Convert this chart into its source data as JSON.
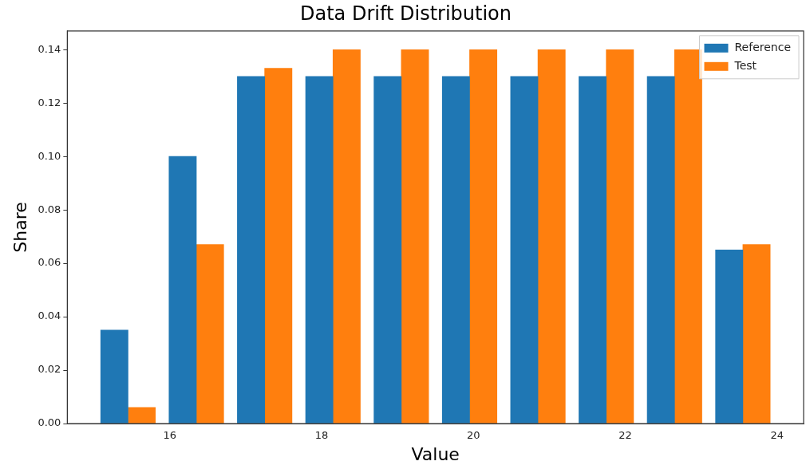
{
  "chart_data": {
    "type": "histogram",
    "title": "Data Drift Distribution",
    "xlabel": "Value",
    "ylabel": "Share",
    "bins": [
      15,
      15.9,
      16.8,
      17.7,
      18.6,
      19.5,
      20.4,
      21.3,
      22.2,
      23.1,
      24
    ],
    "series": [
      {
        "name": "Reference",
        "color": "#1f77b4",
        "values": [
          0.035,
          0.1,
          0.13,
          0.13,
          0.13,
          0.13,
          0.13,
          0.13,
          0.13,
          0.065
        ]
      },
      {
        "name": "Test",
        "color": "#ff7f0e",
        "values": [
          0.006,
          0.067,
          0.133,
          0.14,
          0.14,
          0.14,
          0.14,
          0.14,
          0.14,
          0.067
        ]
      }
    ],
    "xlim": [
      14.65,
      24.35
    ],
    "xticks": [
      16,
      18,
      20,
      22,
      24
    ],
    "ylim": [
      0,
      0.147
    ],
    "yticks": [
      {
        "value": 0,
        "label": "0.00"
      },
      0.02,
      0.04,
      0.06,
      0.08,
      {
        "value": 0.1,
        "label": "0.10"
      },
      0.12,
      0.14
    ],
    "grid": false,
    "legend": "top right"
  }
}
